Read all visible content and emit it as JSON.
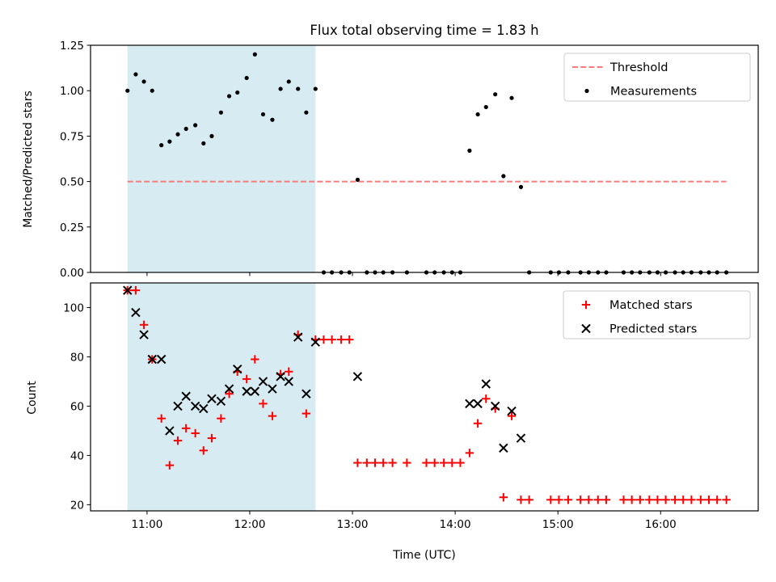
{
  "chart_data": [
    {
      "type": "scatter",
      "title": "Flux total observing time = 1.83 h",
      "xlabel": "",
      "ylabel": "Matched/Predicted stars",
      "ylim": [
        0,
        1.25
      ],
      "yticks": [
        0.0,
        0.25,
        0.5,
        0.75,
        1.0,
        1.25
      ],
      "ytick_labels": [
        "0.00",
        "0.25",
        "0.50",
        "0.75",
        "1.00",
        "1.25"
      ],
      "xlim": [
        10.45,
        16.95
      ],
      "shaded_span": [
        10.81,
        12.64
      ],
      "legend": {
        "position": "upper right",
        "entries": [
          "Threshold",
          "Measurements"
        ]
      },
      "series": [
        {
          "name": "Threshold",
          "style": "dashed-line",
          "color": "#f87c7c",
          "x": [
            10.81,
            16.64
          ],
          "y": [
            0.5,
            0.5
          ]
        },
        {
          "name": "Measurements",
          "style": "dots",
          "color": "#000000",
          "points": [
            [
              10.81,
              1.0
            ],
            [
              10.89,
              1.09
            ],
            [
              10.97,
              1.05
            ],
            [
              11.05,
              1.0
            ],
            [
              11.14,
              0.7
            ],
            [
              11.22,
              0.72
            ],
            [
              11.3,
              0.76
            ],
            [
              11.38,
              0.79
            ],
            [
              11.47,
              0.81
            ],
            [
              11.55,
              0.71
            ],
            [
              11.63,
              0.75
            ],
            [
              11.72,
              0.88
            ],
            [
              11.8,
              0.97
            ],
            [
              11.88,
              0.99
            ],
            [
              11.97,
              1.07
            ],
            [
              12.05,
              1.2
            ],
            [
              12.13,
              0.87
            ],
            [
              12.22,
              0.84
            ],
            [
              12.3,
              1.01
            ],
            [
              12.38,
              1.05
            ],
            [
              12.47,
              1.01
            ],
            [
              12.55,
              0.88
            ],
            [
              12.64,
              1.01
            ],
            [
              12.72,
              0
            ],
            [
              12.8,
              0
            ],
            [
              12.89,
              0
            ],
            [
              12.97,
              0
            ],
            [
              13.05,
              0.51
            ],
            [
              13.14,
              0
            ],
            [
              13.22,
              0
            ],
            [
              13.3,
              0
            ],
            [
              13.39,
              0
            ],
            [
              13.53,
              0
            ],
            [
              13.72,
              0
            ],
            [
              13.8,
              0
            ],
            [
              13.89,
              0
            ],
            [
              13.97,
              0
            ],
            [
              14.05,
              0
            ],
            [
              14.14,
              0.67
            ],
            [
              14.22,
              0.87
            ],
            [
              14.3,
              0.91
            ],
            [
              14.39,
              0.98
            ],
            [
              14.47,
              0.53
            ],
            [
              14.55,
              0.96
            ],
            [
              14.64,
              0.47
            ],
            [
              14.72,
              0
            ],
            [
              14.93,
              0
            ],
            [
              15.01,
              0
            ],
            [
              15.1,
              0
            ],
            [
              15.22,
              0
            ],
            [
              15.3,
              0
            ],
            [
              15.39,
              0
            ],
            [
              15.47,
              0
            ],
            [
              15.64,
              0
            ],
            [
              15.72,
              0
            ],
            [
              15.8,
              0
            ],
            [
              15.89,
              0
            ],
            [
              15.97,
              0
            ],
            [
              16.05,
              0
            ],
            [
              16.14,
              0
            ],
            [
              16.22,
              0
            ],
            [
              16.3,
              0
            ],
            [
              16.39,
              0
            ],
            [
              16.47,
              0
            ],
            [
              16.55,
              0
            ],
            [
              16.64,
              0
            ]
          ]
        }
      ]
    },
    {
      "type": "scatter",
      "title": "",
      "xlabel": "Time (UTC)",
      "ylabel": "Count",
      "ylim": [
        17.5,
        110
      ],
      "yticks": [
        20,
        40,
        60,
        80,
        100
      ],
      "ytick_labels": [
        "20",
        "40",
        "60",
        "80",
        "100"
      ],
      "xlim": [
        10.45,
        16.95
      ],
      "xticks": [
        11,
        12,
        13,
        14,
        15,
        16
      ],
      "xtick_labels": [
        "11:00",
        "12:00",
        "13:00",
        "14:00",
        "15:00",
        "16:00"
      ],
      "shaded_span": [
        10.81,
        12.64
      ],
      "legend": {
        "position": "upper right",
        "entries": [
          "Matched stars",
          "Predicted stars"
        ]
      },
      "series": [
        {
          "name": "Matched stars",
          "marker": "plus",
          "color": "#ff0000",
          "points": [
            [
              10.81,
              107
            ],
            [
              10.89,
              107
            ],
            [
              10.97,
              93
            ],
            [
              11.05,
              79
            ],
            [
              11.14,
              55
            ],
            [
              11.22,
              36
            ],
            [
              11.3,
              46
            ],
            [
              11.38,
              51
            ],
            [
              11.47,
              49
            ],
            [
              11.55,
              42
            ],
            [
              11.63,
              47
            ],
            [
              11.72,
              55
            ],
            [
              11.8,
              65
            ],
            [
              11.88,
              74
            ],
            [
              11.97,
              71
            ],
            [
              12.05,
              79
            ],
            [
              12.13,
              61
            ],
            [
              12.22,
              56
            ],
            [
              12.3,
              73
            ],
            [
              12.38,
              74
            ],
            [
              12.47,
              89
            ],
            [
              12.55,
              57
            ],
            [
              12.64,
              87
            ],
            [
              12.72,
              87
            ],
            [
              12.8,
              87
            ],
            [
              12.89,
              87
            ],
            [
              12.97,
              87
            ],
            [
              13.05,
              37
            ],
            [
              13.14,
              37
            ],
            [
              13.22,
              37
            ],
            [
              13.3,
              37
            ],
            [
              13.39,
              37
            ],
            [
              13.53,
              37
            ],
            [
              13.72,
              37
            ],
            [
              13.8,
              37
            ],
            [
              13.89,
              37
            ],
            [
              13.97,
              37
            ],
            [
              14.05,
              37
            ],
            [
              14.14,
              41
            ],
            [
              14.22,
              53
            ],
            [
              14.3,
              63
            ],
            [
              14.39,
              59
            ],
            [
              14.47,
              23
            ],
            [
              14.55,
              56
            ],
            [
              14.64,
              22
            ],
            [
              14.72,
              22
            ],
            [
              14.93,
              22
            ],
            [
              15.01,
              22
            ],
            [
              15.1,
              22
            ],
            [
              15.22,
              22
            ],
            [
              15.3,
              22
            ],
            [
              15.39,
              22
            ],
            [
              15.47,
              22
            ],
            [
              15.64,
              22
            ],
            [
              15.72,
              22
            ],
            [
              15.8,
              22
            ],
            [
              15.89,
              22
            ],
            [
              15.97,
              22
            ],
            [
              16.05,
              22
            ],
            [
              16.14,
              22
            ],
            [
              16.22,
              22
            ],
            [
              16.3,
              22
            ],
            [
              16.39,
              22
            ],
            [
              16.47,
              22
            ],
            [
              16.55,
              22
            ],
            [
              16.64,
              22
            ]
          ]
        },
        {
          "name": "Predicted stars",
          "marker": "x",
          "color": "#000000",
          "points": [
            [
              10.81,
              107
            ],
            [
              10.89,
              98
            ],
            [
              10.97,
              89
            ],
            [
              11.05,
              79
            ],
            [
              11.14,
              79
            ],
            [
              11.22,
              50
            ],
            [
              11.3,
              60
            ],
            [
              11.38,
              64
            ],
            [
              11.47,
              60
            ],
            [
              11.55,
              59
            ],
            [
              11.63,
              63
            ],
            [
              11.72,
              62
            ],
            [
              11.8,
              67
            ],
            [
              11.88,
              75
            ],
            [
              11.97,
              66
            ],
            [
              12.05,
              66
            ],
            [
              12.13,
              70
            ],
            [
              12.22,
              67
            ],
            [
              12.3,
              72
            ],
            [
              12.38,
              70
            ],
            [
              12.47,
              88
            ],
            [
              12.55,
              65
            ],
            [
              12.64,
              86
            ],
            [
              13.05,
              72
            ],
            [
              14.14,
              61
            ],
            [
              14.22,
              61
            ],
            [
              14.3,
              69
            ],
            [
              14.39,
              60
            ],
            [
              14.47,
              43
            ],
            [
              14.55,
              58
            ],
            [
              14.64,
              47
            ]
          ]
        }
      ]
    }
  ]
}
